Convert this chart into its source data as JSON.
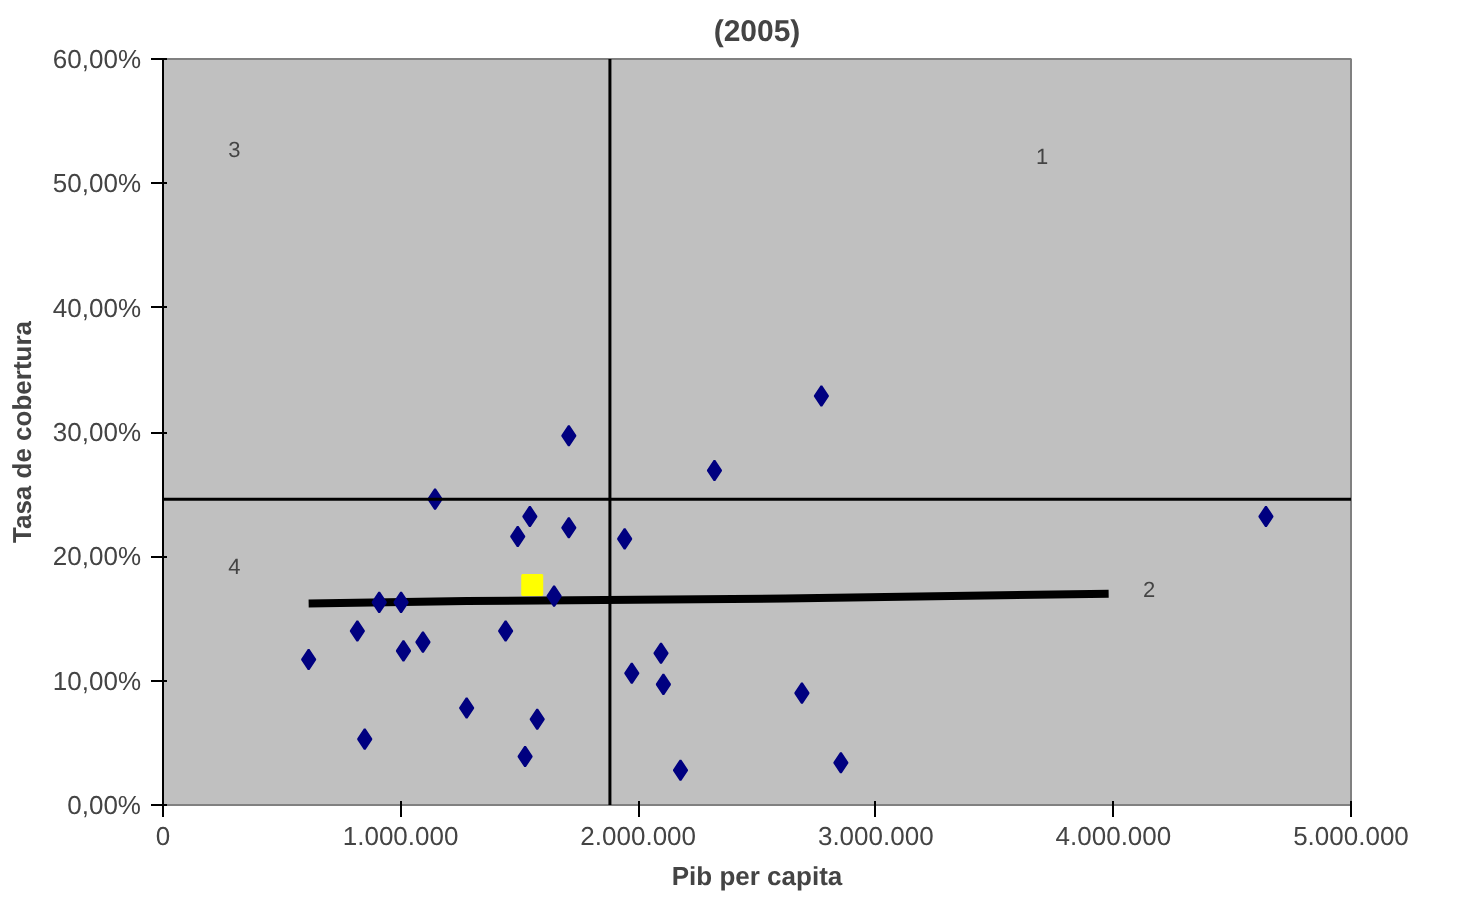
{
  "chart_data": {
    "type": "scatter",
    "title": "(2005)",
    "xlabel": "Pib per capita",
    "ylabel": "Tasa de cobertura",
    "xlim": [
      0,
      5000000
    ],
    "ylim": [
      0,
      60
    ],
    "xticks": [
      0,
      {
        "value": 1000000,
        "label": "1.000.000"
      },
      {
        "value": 2000000,
        "label": "2.000.000"
      },
      {
        "value": 3000000,
        "label": "3.000.000"
      },
      {
        "value": 4000000,
        "label": "4.000.000"
      },
      {
        "value": 5000000,
        "label": "5.000.000"
      }
    ],
    "yticks": [
      {
        "value": 0,
        "label": "0,00%"
      },
      {
        "value": 10,
        "label": "10,00%"
      },
      {
        "value": 20,
        "label": "20,00%"
      },
      {
        "value": 30,
        "label": "30,00%"
      },
      {
        "value": 40,
        "label": "40,00%"
      },
      {
        "value": 50,
        "label": "50,00%"
      },
      {
        "value": 60,
        "label": "60,00%"
      }
    ],
    "grid": false,
    "series": [
      {
        "marker": "diamond",
        "color": "#000080",
        "x": [
          613000,
          818000,
          849000,
          910000,
          1002000,
          1012000,
          1094000,
          1145000,
          1278000,
          1442000,
          1493000,
          1544000,
          1524000,
          1575000,
          1646000,
          1708000,
          1708000,
          1943000,
          1973000,
          2096000,
          2106000,
          2178000,
          2321000,
          2689000,
          2771000,
          2853000,
          4642000
        ],
        "values": [
          11.7,
          14.0,
          5.3,
          16.3,
          16.3,
          12.4,
          13.1,
          24.6,
          7.8,
          14.0,
          21.6,
          23.2,
          3.9,
          6.9,
          16.8,
          29.7,
          22.3,
          21.4,
          10.6,
          12.2,
          9.7,
          2.8,
          26.9,
          9.0,
          32.9,
          3.4,
          23.2
        ]
      },
      {
        "marker": "square",
        "color": "#ffff00",
        "x": [
          1554000
        ],
        "values": [
          17.7
        ]
      },
      {
        "type": "line",
        "color": "#000000",
        "x": [
          613000,
          1278000,
          2618000,
          3980000
        ],
        "values": [
          16.2,
          16.4,
          16.6,
          17.0
        ]
      }
    ],
    "ref_lines": [
      {
        "axis": "x",
        "value": 1881000,
        "color": "#000000"
      },
      {
        "axis": "y",
        "value": 24.6,
        "color": "#000000"
      }
    ],
    "annotations": [
      "1",
      "2",
      "3",
      "4"
    ]
  }
}
